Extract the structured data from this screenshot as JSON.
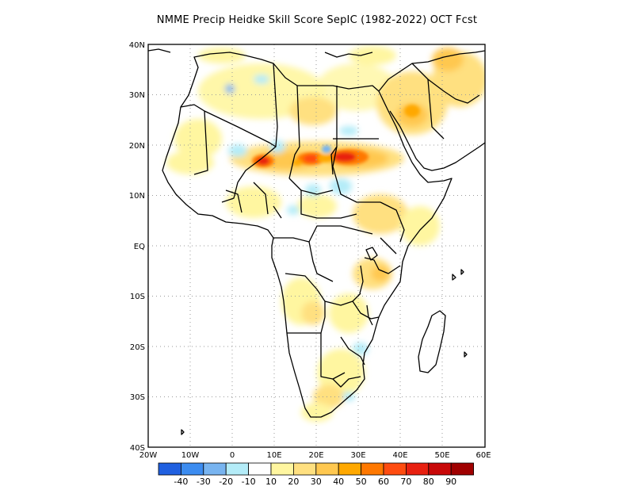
{
  "title": "NMME Precip Heidke Skill Score SepIC (1982-2022) OCT Fcst",
  "map": {
    "lat_labels": [
      "40N",
      "30N",
      "20N",
      "10N",
      "EQ",
      "10S",
      "20S",
      "30S",
      "40S"
    ],
    "lon_labels": [
      "20W",
      "10W",
      "0",
      "10E",
      "20E",
      "30E",
      "40E",
      "50E",
      "60E"
    ],
    "grid": "dotted"
  },
  "colorbar": {
    "colors": [
      "#2060e0",
      "#3c8cf0",
      "#78b4f0",
      "#b4ecf8",
      "#ffffff",
      "#fff6a0",
      "#ffe080",
      "#ffc850",
      "#ffa800",
      "#ff7800",
      "#ff4c10",
      "#e82010",
      "#c80808",
      "#a00000"
    ],
    "labels": [
      "-40",
      "-30",
      "-20",
      "-10",
      "10",
      "20",
      "30",
      "40",
      "50",
      "60",
      "70",
      "80",
      "90"
    ]
  },
  "colors": {
    "land_border": "#000000",
    "grid": "#9a9a9a"
  }
}
